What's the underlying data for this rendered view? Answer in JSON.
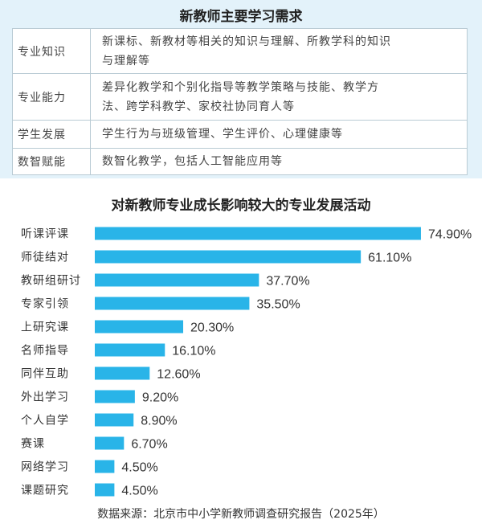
{
  "needs_table": {
    "title": "新教师主要学习需求",
    "rows": [
      {
        "category": "专业知识",
        "description_lines": [
          "新课标、新教材等相关的知识与理解、所教学科的知识",
          "与理解等"
        ]
      },
      {
        "category": "专业能力",
        "description_lines": [
          "差异化教学和个别化指导等教学策略与技能、教学方",
          "法、跨学科教学、家校社协同育人等"
        ]
      },
      {
        "category": "学生发展",
        "description_lines": [
          "学生行为与班级管理、学生评价、心理健康等"
        ]
      },
      {
        "category": "数智赋能",
        "description_lines": [
          "数智化教学，包括人工智能应用等"
        ]
      }
    ]
  },
  "chart_data": {
    "type": "bar",
    "orientation": "horizontal",
    "title": "对新教师专业成长影响较大的专业发展活动",
    "categories": [
      "听课评课",
      "师徒结对",
      "教研组研讨",
      "专家引领",
      "上研究课",
      "名师指导",
      "同伴互助",
      "外出学习",
      "个人自学",
      "赛课",
      "网络学习",
      "课题研究"
    ],
    "values": [
      74.9,
      61.1,
      37.7,
      35.5,
      20.3,
      16.1,
      12.6,
      9.2,
      8.9,
      6.7,
      4.5,
      4.5
    ],
    "value_labels": [
      "74.90%",
      "61.10%",
      "37.70%",
      "35.50%",
      "20.30%",
      "16.10%",
      "12.60%",
      "9.20%",
      "8.90%",
      "6.70%",
      "4.50%",
      "4.50%"
    ],
    "bar_color": "#29b4e8",
    "label_color": "#333333"
  },
  "source": "数据来源：北京市中小学新教师调查研究报告（2025年）"
}
